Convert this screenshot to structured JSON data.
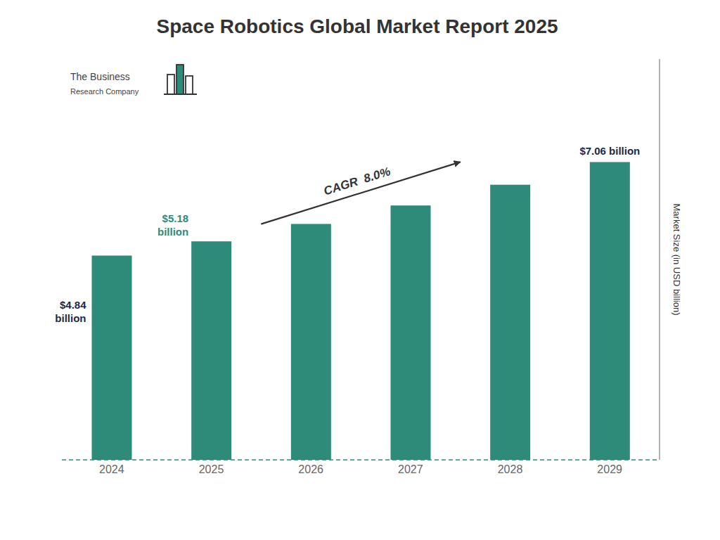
{
  "chart_data": {
    "type": "bar",
    "title": "Space Robotics Global Market Report 2025",
    "categories": [
      "2024",
      "2025",
      "2026",
      "2027",
      "2028",
      "2029"
    ],
    "values": [
      4.84,
      5.18,
      5.59,
      6.03,
      6.52,
      7.06
    ],
    "color": "#2E8B7A",
    "ylim": [
      0,
      9.5
    ],
    "ylabel": "Market Size (in USD billion)",
    "tick_labels": "x",
    "grid": false,
    "annotations": [
      {
        "text": "$4.84\nbillion",
        "category": "2024",
        "color": "#1a2a4a"
      },
      {
        "text": "$5.18\nbillion",
        "category": "2025",
        "color": "#2E8B7A"
      },
      {
        "text": "$7.06 billion",
        "category": "2029",
        "color": "#1a2a4a"
      },
      {
        "text": "CAGR  8.0%",
        "from": "2025",
        "to": "2029"
      },
      {
        "text": "The Business"
      },
      {
        "text": "Research Company"
      }
    ]
  }
}
